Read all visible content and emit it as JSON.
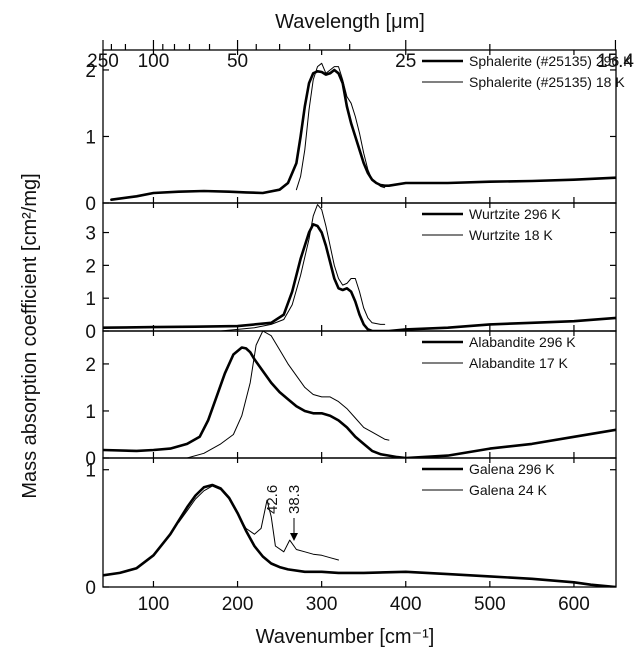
{
  "figure": {
    "xlabel": "Wavenumber [cm⁻¹]",
    "x2label": "Wavelength [μm]",
    "ylabel": "Mass absorption coefficient [cm²/mg]",
    "x_tick_labels": [
      "100",
      "200",
      "300",
      "400",
      "500",
      "600"
    ],
    "x2_tick_labels": [
      "250",
      "100",
      "50",
      "25",
      "15.4"
    ],
    "annotations": [
      "42.6",
      "38.3"
    ]
  },
  "chart_data": [
    {
      "type": "line",
      "xlim": [
        40,
        650
      ],
      "ylim": [
        0,
        2.3
      ],
      "y_ticks": [
        0,
        1,
        2
      ],
      "y_tick_labels": [
        "0",
        "1",
        "2"
      ],
      "legend_position": "top-right",
      "series": [
        {
          "name": "Sphalerite (#25135) 296 K",
          "style": "thick",
          "x": [
            50,
            80,
            100,
            130,
            160,
            190,
            210,
            230,
            250,
            260,
            270,
            275,
            280,
            285,
            290,
            295,
            300,
            305,
            310,
            315,
            320,
            325,
            330,
            335,
            340,
            345,
            350,
            355,
            360,
            365,
            370,
            375,
            380,
            400,
            450,
            500,
            550,
            600,
            650
          ],
          "y": [
            0.05,
            0.1,
            0.15,
            0.17,
            0.18,
            0.17,
            0.16,
            0.15,
            0.2,
            0.3,
            0.6,
            1.0,
            1.45,
            1.8,
            1.95,
            1.98,
            1.97,
            1.93,
            1.95,
            2.0,
            1.95,
            1.8,
            1.45,
            1.2,
            1.0,
            0.8,
            0.6,
            0.45,
            0.35,
            0.3,
            0.27,
            0.26,
            0.26,
            0.3,
            0.3,
            0.32,
            0.33,
            0.35,
            0.38
          ]
        },
        {
          "name": "Sphalerite (#25135) 18 K",
          "style": "thin",
          "x": [
            270,
            275,
            280,
            285,
            290,
            295,
            300,
            305,
            310,
            315,
            320,
            325,
            330,
            335,
            340,
            345,
            350,
            355,
            360,
            365,
            370,
            375
          ],
          "y": [
            0.2,
            0.4,
            0.8,
            1.4,
            1.85,
            2.05,
            2.1,
            1.95,
            2.0,
            2.05,
            2.05,
            1.85,
            1.6,
            1.5,
            1.3,
            1.05,
            0.75,
            0.5,
            0.35,
            0.3,
            0.25,
            0.23
          ]
        }
      ]
    },
    {
      "type": "line",
      "xlim": [
        40,
        650
      ],
      "ylim": [
        0,
        3.9
      ],
      "y_ticks": [
        0,
        1,
        2,
        3
      ],
      "y_tick_labels": [
        "0",
        "1",
        "2",
        "3"
      ],
      "legend_position": "top-right",
      "series": [
        {
          "name": "Wurtzite 296 K",
          "style": "thick",
          "x": [
            40,
            100,
            150,
            200,
            240,
            255,
            265,
            275,
            285,
            290,
            295,
            300,
            305,
            310,
            315,
            320,
            325,
            330,
            335,
            340,
            345,
            350,
            355,
            360,
            380,
            400,
            450,
            500,
            550,
            600,
            650
          ],
          "y": [
            0.1,
            0.12,
            0.13,
            0.15,
            0.25,
            0.5,
            1.2,
            2.2,
            3.0,
            3.25,
            3.2,
            3.0,
            2.6,
            2.1,
            1.6,
            1.3,
            1.25,
            1.3,
            1.2,
            0.9,
            0.5,
            0.2,
            0.05,
            0.0,
            0.0,
            0.05,
            0.1,
            0.2,
            0.25,
            0.3,
            0.4
          ]
        },
        {
          "name": "Wurtzite 18 K",
          "style": "thin",
          "x": [
            180,
            200,
            220,
            240,
            255,
            265,
            275,
            285,
            290,
            295,
            300,
            305,
            310,
            315,
            320,
            325,
            330,
            335,
            340,
            345,
            350,
            355,
            360,
            370,
            375
          ],
          "y": [
            0.0,
            0.05,
            0.1,
            0.2,
            0.35,
            0.8,
            1.7,
            2.8,
            3.5,
            3.85,
            3.7,
            3.2,
            2.6,
            2.0,
            1.6,
            1.4,
            1.45,
            1.6,
            1.6,
            1.2,
            0.7,
            0.4,
            0.25,
            0.2,
            0.2
          ]
        }
      ]
    },
    {
      "type": "line",
      "xlim": [
        40,
        650
      ],
      "ylim": [
        0,
        2.7
      ],
      "y_ticks": [
        0,
        1,
        2
      ],
      "y_tick_labels": [
        "0",
        "1",
        "2"
      ],
      "legend_position": "top-right",
      "series": [
        {
          "name": "Alabandite 296 K",
          "style": "thick",
          "x": [
            40,
            80,
            100,
            120,
            140,
            155,
            165,
            175,
            185,
            195,
            205,
            210,
            215,
            220,
            230,
            240,
            250,
            260,
            270,
            280,
            290,
            300,
            310,
            320,
            330,
            340,
            350,
            360,
            370,
            380,
            390,
            400,
            450,
            500,
            550,
            600,
            650
          ],
          "y": [
            0.17,
            0.15,
            0.17,
            0.2,
            0.3,
            0.45,
            0.8,
            1.3,
            1.8,
            2.2,
            2.35,
            2.33,
            2.25,
            2.1,
            1.85,
            1.6,
            1.4,
            1.25,
            1.1,
            1.0,
            0.95,
            0.95,
            0.9,
            0.8,
            0.65,
            0.45,
            0.3,
            0.15,
            0.08,
            0.05,
            0.02,
            0.0,
            0.05,
            0.2,
            0.3,
            0.45,
            0.6
          ]
        },
        {
          "name": "Alabandite 17 K",
          "style": "thin",
          "x": [
            140,
            160,
            180,
            195,
            205,
            215,
            222,
            230,
            240,
            250,
            260,
            270,
            280,
            290,
            300,
            310,
            320,
            330,
            340,
            350,
            360,
            370,
            375,
            380
          ],
          "y": [
            0.0,
            0.1,
            0.3,
            0.5,
            0.9,
            1.6,
            2.4,
            2.7,
            2.6,
            2.3,
            2.0,
            1.75,
            1.5,
            1.35,
            1.3,
            1.3,
            1.2,
            1.05,
            0.85,
            0.65,
            0.55,
            0.45,
            0.4,
            0.38
          ]
        }
      ]
    },
    {
      "type": "line",
      "xlim": [
        40,
        650
      ],
      "ylim": [
        0,
        1.1
      ],
      "y_ticks": [
        0,
        1
      ],
      "y_tick_labels": [
        "0",
        "1"
      ],
      "legend_position": "top-right",
      "series": [
        {
          "name": "Galena 296 K",
          "style": "thick",
          "x": [
            40,
            60,
            80,
            100,
            120,
            140,
            150,
            160,
            170,
            180,
            190,
            200,
            210,
            220,
            230,
            240,
            250,
            260,
            280,
            300,
            320,
            350,
            400,
            450,
            500,
            550,
            600,
            620,
            650
          ],
          "y": [
            0.1,
            0.12,
            0.16,
            0.27,
            0.45,
            0.68,
            0.78,
            0.85,
            0.87,
            0.84,
            0.76,
            0.63,
            0.48,
            0.35,
            0.26,
            0.2,
            0.17,
            0.15,
            0.13,
            0.13,
            0.12,
            0.12,
            0.13,
            0.11,
            0.09,
            0.07,
            0.04,
            0.02,
            0.0
          ]
        },
        {
          "name": "Galena 24 K",
          "style": "thin",
          "x": [
            130,
            140,
            150,
            160,
            170,
            180,
            190,
            200,
            210,
            220,
            228,
            235,
            240,
            245,
            255,
            262,
            270,
            280,
            290,
            300,
            310,
            320
          ],
          "y": [
            0.55,
            0.65,
            0.75,
            0.82,
            0.86,
            0.83,
            0.75,
            0.62,
            0.5,
            0.45,
            0.5,
            0.74,
            0.6,
            0.35,
            0.3,
            0.4,
            0.32,
            0.3,
            0.28,
            0.27,
            0.25,
            0.23
          ]
        }
      ]
    }
  ]
}
